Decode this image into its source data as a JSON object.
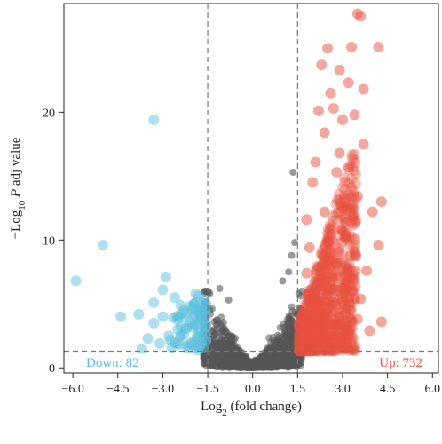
{
  "chart_data": {
    "type": "scatter",
    "xlabel_parts": {
      "base": "Log",
      "sub": "2",
      "rest": " (fold change)"
    },
    "ylabel_parts": {
      "pre": "−Log",
      "sub": "10",
      "italic": " P",
      "rest": " adj value"
    },
    "xlim": [
      -6.3,
      6.2
    ],
    "ylim": [
      -0.4,
      28.5
    ],
    "x_ticks": [
      -6.0,
      -4.5,
      -3.0,
      -1.5,
      0.0,
      1.5,
      3.0,
      4.5,
      6.0
    ],
    "x_tick_labels": [
      "−6.0",
      "−4.5",
      "−3.0",
      "−1.5",
      "0.0",
      "1.5",
      "3.0",
      "4.5",
      "6.0"
    ],
    "y_ticks": [
      0,
      10,
      20
    ],
    "y_tick_labels": [
      "0",
      "10",
      "20"
    ],
    "thresholds": {
      "x": [
        -1.5,
        1.5
      ],
      "y": 1.3
    },
    "colors": {
      "down": "#5bc0de",
      "up": "#e8513f",
      "ns": "#555555",
      "threshold": "#777777"
    },
    "annotations": {
      "down": {
        "label": "Down: 82",
        "count": 82
      },
      "up": {
        "label": "Up: 732",
        "count": 732
      }
    },
    "series": [
      {
        "name": "Down",
        "points": [
          [
            -5.9,
            6.8
          ],
          [
            -5.0,
            9.6
          ],
          [
            -3.3,
            19.4
          ],
          [
            -4.4,
            4.0
          ],
          [
            -3.8,
            4.2
          ],
          [
            -3.3,
            5.1
          ],
          [
            -2.9,
            7.1
          ],
          [
            -2.6,
            5.5
          ],
          [
            -2.4,
            4.9
          ],
          [
            -3.5,
            2.3
          ],
          [
            -3.7,
            1.5
          ],
          [
            -3.1,
            1.9
          ],
          [
            -2.8,
            2.5
          ],
          [
            -2.3,
            2.6
          ],
          [
            -2.0,
            3.4
          ],
          [
            -1.8,
            5.6
          ],
          [
            -1.7,
            4.6
          ],
          [
            -1.6,
            2.9
          ],
          [
            -2.2,
            1.7
          ],
          [
            -1.9,
            1.6
          ],
          [
            -3.3,
            3.5
          ],
          [
            -3.0,
            6.1
          ],
          [
            -1.9,
            5.8
          ],
          [
            -1.7,
            1.9
          ],
          [
            -1.6,
            3.8
          ],
          [
            -2.5,
            3.0
          ],
          [
            -2.7,
            1.6
          ],
          [
            -1.8,
            2.4
          ],
          [
            -3.0,
            4.0
          ],
          [
            -2.1,
            4.8
          ]
        ]
      },
      {
        "name": "Up",
        "points": [
          [
            3.5,
            27.7
          ],
          [
            3.6,
            27.5
          ],
          [
            4.2,
            25.1
          ],
          [
            3.3,
            25.1
          ],
          [
            2.6,
            21.5
          ],
          [
            3.7,
            21.8
          ],
          [
            2.9,
            23.3
          ],
          [
            2.2,
            20.1
          ],
          [
            3.0,
            19.4
          ],
          [
            2.4,
            18.4
          ],
          [
            3.7,
            17.5
          ],
          [
            2.9,
            16.8
          ],
          [
            3.2,
            15.7
          ],
          [
            2.0,
            14.5
          ],
          [
            3.5,
            13.4
          ],
          [
            4.3,
            13.0
          ],
          [
            1.8,
            11.6
          ],
          [
            2.4,
            12.2
          ],
          [
            3.1,
            10.4
          ],
          [
            4.2,
            9.6
          ],
          [
            2.6,
            8.5
          ],
          [
            3.8,
            7.6
          ],
          [
            2.2,
            6.8
          ],
          [
            3.0,
            5.6
          ],
          [
            4.3,
            3.6
          ],
          [
            3.5,
            3.8
          ],
          [
            2.5,
            3.4
          ],
          [
            1.7,
            2.5
          ],
          [
            1.9,
            4.3
          ],
          [
            2.1,
            2.8
          ],
          [
            3.9,
            2.9
          ],
          [
            2.8,
            1.9
          ],
          [
            2.3,
            23.7
          ],
          [
            3.2,
            22.3
          ],
          [
            2.7,
            20.3
          ],
          [
            3.4,
            19.8
          ],
          [
            2.1,
            16.1
          ],
          [
            2.8,
            15.3
          ],
          [
            3.3,
            14.1
          ],
          [
            1.9,
            9.4
          ],
          [
            2.6,
            10.8
          ],
          [
            3.4,
            9.1
          ],
          [
            1.8,
            7.4
          ],
          [
            2.0,
            5.4
          ],
          [
            3.1,
            7.3
          ],
          [
            3.6,
            5.4
          ],
          [
            2.4,
            4.6
          ],
          [
            1.7,
            3.6
          ],
          [
            4.0,
            12.2
          ],
          [
            2.5,
            25.0
          ]
        ]
      }
    ]
  }
}
